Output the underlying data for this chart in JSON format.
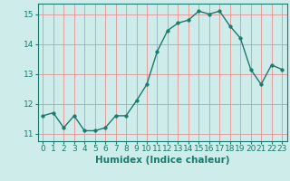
{
  "x": [
    0,
    1,
    2,
    3,
    4,
    5,
    6,
    7,
    8,
    9,
    10,
    11,
    12,
    13,
    14,
    15,
    16,
    17,
    18,
    19,
    20,
    21,
    22,
    23
  ],
  "y": [
    11.6,
    11.7,
    11.2,
    11.6,
    11.1,
    11.1,
    11.2,
    11.6,
    11.6,
    12.1,
    12.65,
    13.75,
    14.45,
    14.7,
    14.8,
    15.1,
    15.0,
    15.1,
    14.6,
    14.2,
    13.15,
    12.65,
    13.3,
    13.15
  ],
  "line_color": "#1a7a6e",
  "marker_color": "#1a7a6e",
  "bg_color": "#ceecea",
  "grid_color_major": "#e89090",
  "grid_color_minor": "#e89090",
  "xlabel": "Humidex (Indice chaleur)",
  "xlim": [
    -0.5,
    23.5
  ],
  "ylim": [
    10.75,
    15.35
  ],
  "yticks": [
    11,
    12,
    13,
    14,
    15
  ],
  "xticks": [
    0,
    1,
    2,
    3,
    4,
    5,
    6,
    7,
    8,
    9,
    10,
    11,
    12,
    13,
    14,
    15,
    16,
    17,
    18,
    19,
    20,
    21,
    22,
    23
  ],
  "xlabel_fontsize": 7.5,
  "tick_fontsize": 6.5,
  "marker_size": 2.5,
  "line_width": 1.0
}
